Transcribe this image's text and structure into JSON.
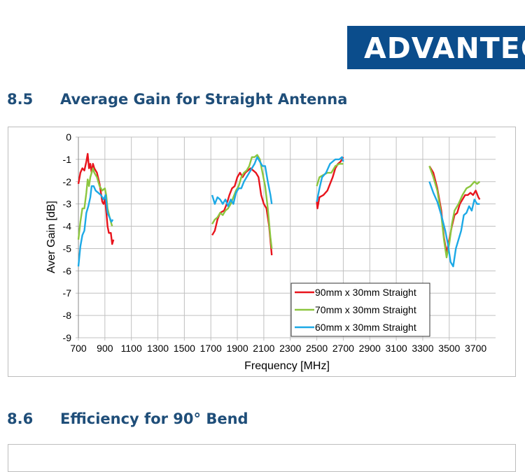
{
  "logo": {
    "text": "ADVANTECH",
    "color": "#0b4d8c"
  },
  "sections": [
    {
      "number": "8.5",
      "title": "Average Gain for Straight Antenna"
    },
    {
      "number": "8.6",
      "title": "Efficiency for 90° Bend"
    }
  ],
  "chart_data": {
    "type": "line",
    "title": "",
    "xlabel": "Frequency [MHz]",
    "ylabel": "Aver Gain [dB]",
    "xlim": [
      700,
      3850
    ],
    "ylim": [
      -9,
      0
    ],
    "xticks": [
      700,
      900,
      1100,
      1300,
      1500,
      1700,
      1900,
      2100,
      2300,
      2500,
      2700,
      2900,
      3100,
      3300,
      3500,
      3700
    ],
    "yticks": [
      0,
      -1,
      -2,
      -3,
      -4,
      -5,
      -6,
      -7,
      -8,
      -9
    ],
    "grid": true,
    "legend_position": "bottom-right",
    "series": [
      {
        "name": "90mm x 30mm Straight",
        "color": "#e8141c",
        "segments": [
          [
            [
              700,
              -2.1
            ],
            [
              715,
              -1.6
            ],
            [
              730,
              -1.4
            ],
            [
              745,
              -1.5
            ],
            [
              760,
              -1.1
            ],
            [
              770,
              -0.75
            ],
            [
              780,
              -1.4
            ],
            [
              790,
              -1.2
            ],
            [
              800,
              -1.6
            ],
            [
              810,
              -1.2
            ],
            [
              820,
              -1.4
            ],
            [
              840,
              -1.6
            ],
            [
              860,
              -2.1
            ],
            [
              870,
              -2.5
            ],
            [
              880,
              -2.9
            ],
            [
              890,
              -3.0
            ],
            [
              900,
              -2.8
            ],
            [
              910,
              -3.3
            ],
            [
              920,
              -4.0
            ],
            [
              930,
              -4.3
            ],
            [
              945,
              -4.3
            ],
            [
              955,
              -4.8
            ],
            [
              965,
              -4.6
            ]
          ],
          [
            [
              1710,
              -4.4
            ],
            [
              1730,
              -4.2
            ],
            [
              1750,
              -3.7
            ],
            [
              1770,
              -3.4
            ],
            [
              1800,
              -3.3
            ],
            [
              1820,
              -3.0
            ],
            [
              1840,
              -2.6
            ],
            [
              1860,
              -2.3
            ],
            [
              1880,
              -2.2
            ],
            [
              1900,
              -1.8
            ],
            [
              1920,
              -1.6
            ],
            [
              1940,
              -1.8
            ],
            [
              1960,
              -1.6
            ],
            [
              1980,
              -1.5
            ],
            [
              2000,
              -1.4
            ],
            [
              2020,
              -1.5
            ],
            [
              2040,
              -1.6
            ],
            [
              2060,
              -1.8
            ],
            [
              2080,
              -2.6
            ],
            [
              2100,
              -3.0
            ],
            [
              2120,
              -3.2
            ],
            [
              2140,
              -4.0
            ],
            [
              2160,
              -5.3
            ]
          ],
          [
            [
              2500,
              -2.9
            ],
            [
              2505,
              -3.2
            ],
            [
              2520,
              -2.7
            ],
            [
              2550,
              -2.6
            ],
            [
              2580,
              -2.4
            ],
            [
              2600,
              -2.1
            ],
            [
              2620,
              -1.8
            ],
            [
              2640,
              -1.4
            ],
            [
              2660,
              -1.2
            ],
            [
              2680,
              -1.1
            ],
            [
              2700,
              -0.9
            ]
          ],
          [
            [
              3350,
              -1.3
            ],
            [
              3380,
              -1.6
            ],
            [
              3410,
              -2.3
            ],
            [
              3440,
              -3.3
            ],
            [
              3460,
              -4.5
            ],
            [
              3480,
              -5.2
            ],
            [
              3500,
              -4.6
            ],
            [
              3520,
              -4.0
            ],
            [
              3540,
              -3.5
            ],
            [
              3560,
              -3.4
            ],
            [
              3580,
              -3.0
            ],
            [
              3600,
              -2.8
            ],
            [
              3620,
              -2.6
            ],
            [
              3640,
              -2.6
            ],
            [
              3660,
              -2.5
            ],
            [
              3680,
              -2.6
            ],
            [
              3700,
              -2.4
            ],
            [
              3720,
              -2.7
            ],
            [
              3730,
              -2.8
            ]
          ]
        ]
      },
      {
        "name": "70mm x 30mm Straight",
        "color": "#8cc63f",
        "segments": [
          [
            [
              700,
              -4.6
            ],
            [
              715,
              -3.8
            ],
            [
              730,
              -3.2
            ],
            [
              745,
              -3.2
            ],
            [
              760,
              -2.5
            ],
            [
              770,
              -1.9
            ],
            [
              780,
              -2.2
            ],
            [
              790,
              -1.8
            ],
            [
              800,
              -1.6
            ],
            [
              810,
              -1.4
            ],
            [
              820,
              -1.6
            ],
            [
              840,
              -1.8
            ],
            [
              860,
              -2.2
            ],
            [
              880,
              -2.4
            ],
            [
              900,
              -2.3
            ],
            [
              910,
              -2.6
            ],
            [
              920,
              -3.2
            ],
            [
              940,
              -3.7
            ],
            [
              955,
              -4.0
            ]
          ],
          [
            [
              1710,
              -3.9
            ],
            [
              1730,
              -3.7
            ],
            [
              1750,
              -3.6
            ],
            [
              1770,
              -3.4
            ],
            [
              1790,
              -3.5
            ],
            [
              1810,
              -3.3
            ],
            [
              1830,
              -3.2
            ],
            [
              1850,
              -3.0
            ],
            [
              1870,
              -2.7
            ],
            [
              1890,
              -2.4
            ],
            [
              1910,
              -2.2
            ],
            [
              1930,
              -1.8
            ],
            [
              1950,
              -1.6
            ],
            [
              1970,
              -1.5
            ],
            [
              1990,
              -1.3
            ],
            [
              2010,
              -0.9
            ],
            [
              2030,
              -0.9
            ],
            [
              2050,
              -0.8
            ],
            [
              2070,
              -1.0
            ],
            [
              2090,
              -1.6
            ],
            [
              2110,
              -2.2
            ],
            [
              2130,
              -3.2
            ],
            [
              2150,
              -4.5
            ],
            [
              2160,
              -5.0
            ]
          ],
          [
            [
              2500,
              -2.2
            ],
            [
              2520,
              -1.8
            ],
            [
              2550,
              -1.7
            ],
            [
              2580,
              -1.6
            ],
            [
              2610,
              -1.6
            ],
            [
              2640,
              -1.3
            ],
            [
              2670,
              -1.2
            ],
            [
              2700,
              -1.2
            ]
          ],
          [
            [
              3350,
              -1.3
            ],
            [
              3380,
              -1.8
            ],
            [
              3410,
              -2.4
            ],
            [
              3440,
              -3.5
            ],
            [
              3460,
              -4.6
            ],
            [
              3480,
              -5.4
            ],
            [
              3500,
              -4.8
            ],
            [
              3520,
              -3.9
            ],
            [
              3540,
              -3.3
            ],
            [
              3570,
              -3.0
            ],
            [
              3600,
              -2.6
            ],
            [
              3630,
              -2.3
            ],
            [
              3660,
              -2.2
            ],
            [
              3690,
              -2.0
            ],
            [
              3710,
              -2.1
            ],
            [
              3730,
              -2.0
            ]
          ]
        ]
      },
      {
        "name": "60mm x 30mm Straight",
        "color": "#1ca9e6",
        "segments": [
          [
            [
              700,
              -5.8
            ],
            [
              715,
              -4.9
            ],
            [
              730,
              -4.4
            ],
            [
              745,
              -4.2
            ],
            [
              760,
              -3.4
            ],
            [
              775,
              -3.1
            ],
            [
              790,
              -2.7
            ],
            [
              800,
              -2.2
            ],
            [
              815,
              -2.2
            ],
            [
              830,
              -2.4
            ],
            [
              850,
              -2.5
            ],
            [
              870,
              -2.6
            ],
            [
              890,
              -2.8
            ],
            [
              905,
              -2.6
            ],
            [
              920,
              -3.4
            ],
            [
              935,
              -3.6
            ],
            [
              950,
              -3.8
            ],
            [
              960,
              -3.7
            ]
          ],
          [
            [
              1710,
              -2.6
            ],
            [
              1730,
              -3.0
            ],
            [
              1750,
              -2.7
            ],
            [
              1770,
              -2.8
            ],
            [
              1790,
              -3.0
            ],
            [
              1810,
              -2.8
            ],
            [
              1830,
              -3.1
            ],
            [
              1850,
              -2.8
            ],
            [
              1870,
              -3.0
            ],
            [
              1890,
              -2.5
            ],
            [
              1910,
              -2.3
            ],
            [
              1930,
              -2.3
            ],
            [
              1950,
              -2.0
            ],
            [
              1970,
              -1.8
            ],
            [
              1990,
              -1.6
            ],
            [
              2010,
              -1.4
            ],
            [
              2030,
              -1.2
            ],
            [
              2050,
              -0.9
            ],
            [
              2070,
              -1.1
            ],
            [
              2090,
              -1.3
            ],
            [
              2110,
              -1.3
            ],
            [
              2130,
              -2.0
            ],
            [
              2150,
              -2.6
            ],
            [
              2160,
              -3.0
            ]
          ],
          [
            [
              2500,
              -2.9
            ],
            [
              2520,
              -2.3
            ],
            [
              2540,
              -1.8
            ],
            [
              2570,
              -1.6
            ],
            [
              2600,
              -1.2
            ],
            [
              2640,
              -1.0
            ],
            [
              2670,
              -1.0
            ],
            [
              2690,
              -0.9
            ],
            [
              2700,
              -1.1
            ]
          ],
          [
            [
              3350,
              -2.0
            ],
            [
              3380,
              -2.5
            ],
            [
              3410,
              -2.9
            ],
            [
              3440,
              -3.5
            ],
            [
              3470,
              -4.2
            ],
            [
              3490,
              -4.8
            ],
            [
              3510,
              -5.6
            ],
            [
              3530,
              -5.8
            ],
            [
              3550,
              -5.0
            ],
            [
              3570,
              -4.6
            ],
            [
              3590,
              -4.2
            ],
            [
              3610,
              -3.5
            ],
            [
              3630,
              -3.4
            ],
            [
              3650,
              -3.1
            ],
            [
              3670,
              -3.3
            ],
            [
              3690,
              -2.8
            ],
            [
              3710,
              -3.0
            ],
            [
              3730,
              -3.0
            ]
          ]
        ]
      }
    ]
  }
}
